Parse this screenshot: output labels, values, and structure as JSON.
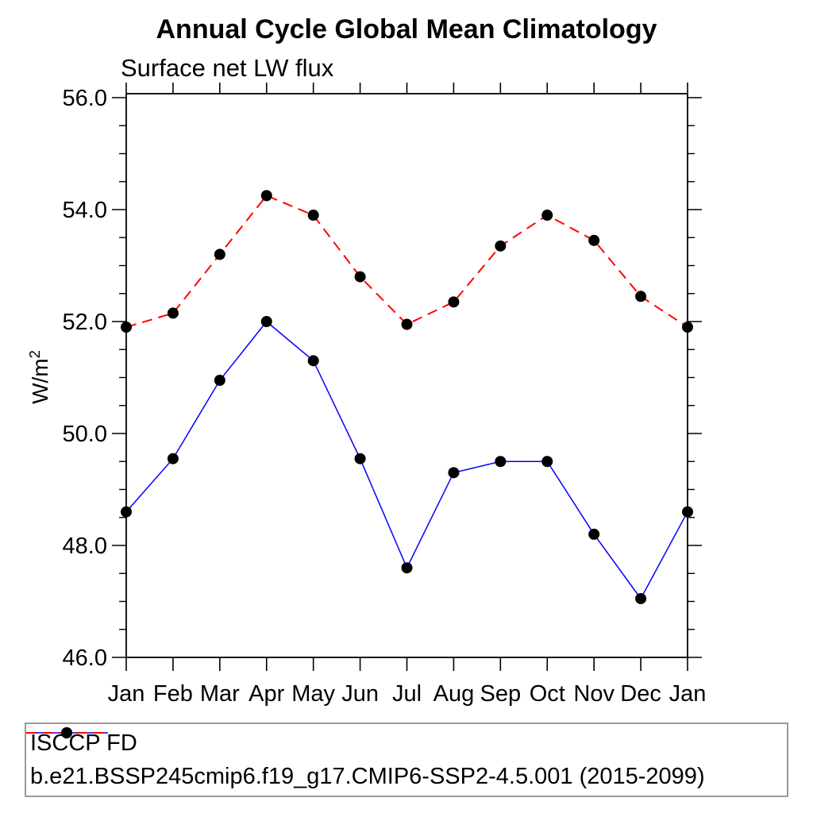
{
  "chart_data": {
    "type": "line",
    "title": "Annual Cycle Global Mean Climatology",
    "subtitle": "Surface net LW flux",
    "ylabel": "W/m2",
    "ylabel_base": "W/m",
    "ylabel_sup": "2",
    "categories": [
      "Jan",
      "Feb",
      "Mar",
      "Apr",
      "May",
      "Jun",
      "Jul",
      "Aug",
      "Sep",
      "Oct",
      "Nov",
      "Dec",
      "Jan"
    ],
    "series": [
      {
        "name": "ISCCP FD",
        "color": "#0000ff",
        "line_style": "solid",
        "line_width": 1.5,
        "marker": "circle",
        "marker_color": "#000000",
        "values": [
          48.6,
          49.55,
          50.95,
          52.0,
          51.3,
          49.55,
          47.6,
          49.3,
          49.5,
          49.5,
          48.2,
          47.05,
          48.6
        ]
      },
      {
        "name": "b.e21.BSSP245cmip6.f19_g17.CMIP6-SSP2-4.5.001 (2015-2099)",
        "color": "#ff0000",
        "line_style": "dashed",
        "line_width": 2,
        "marker": "circle",
        "marker_color": "#000000",
        "values": [
          51.9,
          52.15,
          53.2,
          54.25,
          53.9,
          52.8,
          51.95,
          52.35,
          53.35,
          53.9,
          53.45,
          52.45,
          51.9
        ]
      }
    ],
    "ylim": [
      46,
      56
    ],
    "ytick_major_step": 2,
    "ytick_minor_step": 0.5,
    "ytick_labels": [
      "46.0",
      "48.0",
      "50.0",
      "52.0",
      "54.0",
      "56.0"
    ],
    "grid": false,
    "tick_sides": "all",
    "legend_position": "bottom",
    "axis_color": "#000000"
  }
}
